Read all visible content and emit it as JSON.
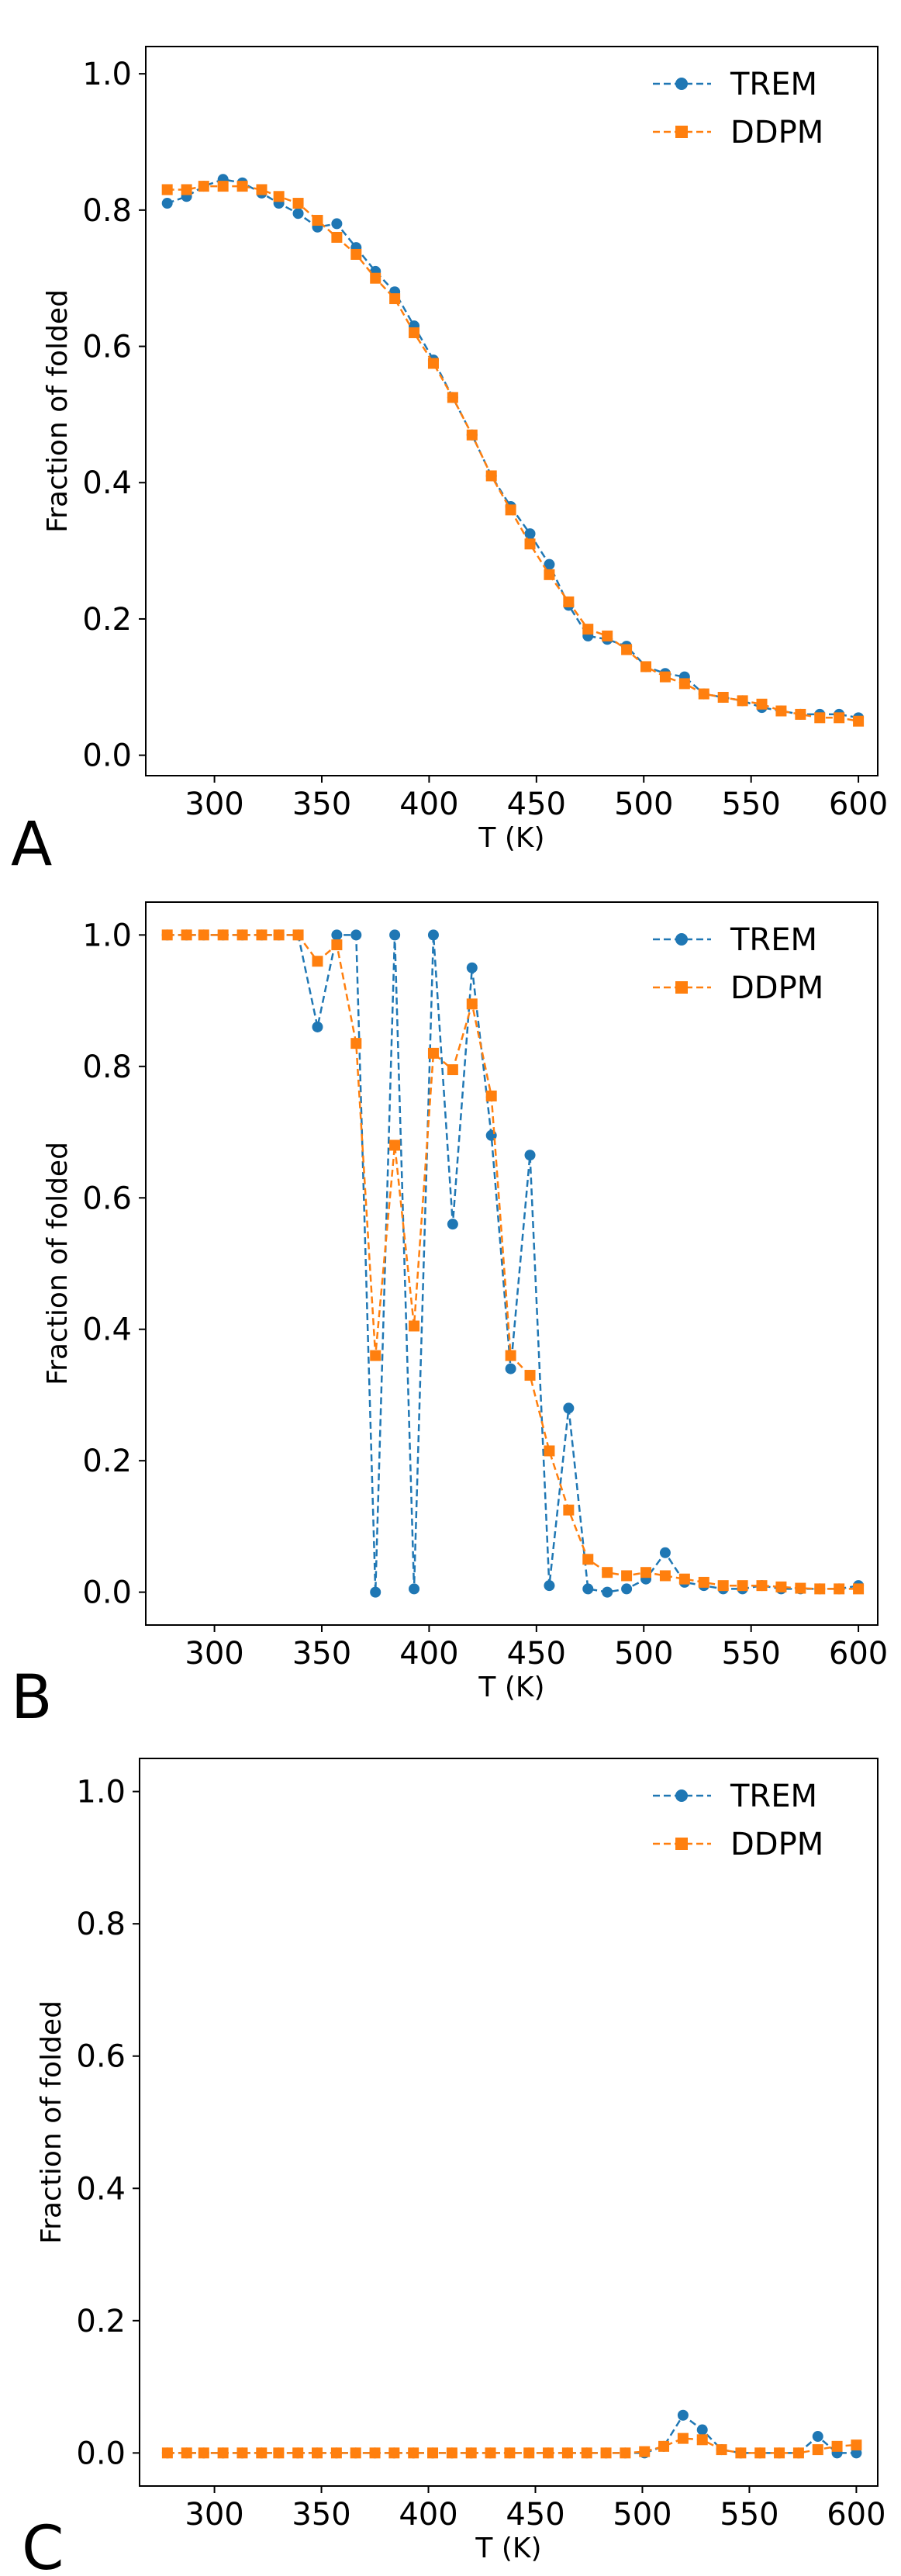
{
  "chart_data": [
    {
      "type": "line",
      "panel_label": "A",
      "xlabel": "T (K)",
      "ylabel": "Fraction of folded",
      "xlim": [
        268,
        609
      ],
      "ylim": [
        -0.03,
        1.04
      ],
      "xticks": [
        300,
        350,
        400,
        450,
        500,
        550,
        600
      ],
      "yticks": [
        0.0,
        0.2,
        0.4,
        0.6,
        0.8,
        1.0
      ],
      "grid": false,
      "legend": "top-right",
      "x": [
        278,
        287,
        295,
        304,
        313,
        322,
        330,
        339,
        348,
        357,
        366,
        375,
        384,
        393,
        402,
        411,
        420,
        429,
        438,
        447,
        456,
        465,
        474,
        483,
        492,
        501,
        510,
        519,
        528,
        537,
        546,
        555,
        564,
        573,
        582,
        591,
        600
      ],
      "series": [
        {
          "name": "TREM",
          "color": "#1f77b4",
          "marker": "circle",
          "values": [
            0.81,
            0.82,
            0.835,
            0.845,
            0.84,
            0.825,
            0.81,
            0.795,
            0.775,
            0.78,
            0.745,
            0.71,
            0.68,
            0.63,
            0.58,
            0.525,
            0.47,
            0.41,
            0.365,
            0.325,
            0.28,
            0.22,
            0.175,
            0.17,
            0.16,
            0.13,
            0.12,
            0.115,
            0.09,
            0.085,
            0.08,
            0.07,
            0.065,
            0.06,
            0.06,
            0.06,
            0.055
          ]
        },
        {
          "name": "DDPM",
          "color": "#ff7f0e",
          "marker": "square",
          "values": [
            0.83,
            0.83,
            0.835,
            0.835,
            0.835,
            0.83,
            0.82,
            0.81,
            0.785,
            0.76,
            0.735,
            0.7,
            0.67,
            0.62,
            0.575,
            0.525,
            0.47,
            0.41,
            0.36,
            0.31,
            0.265,
            0.225,
            0.185,
            0.175,
            0.155,
            0.13,
            0.115,
            0.105,
            0.09,
            0.085,
            0.08,
            0.075,
            0.065,
            0.06,
            0.055,
            0.055,
            0.05
          ]
        }
      ]
    },
    {
      "type": "line",
      "panel_label": "B",
      "xlabel": "T (K)",
      "ylabel": "Fraction of folded",
      "xlim": [
        268,
        609
      ],
      "ylim": [
        -0.05,
        1.05
      ],
      "xticks": [
        300,
        350,
        400,
        450,
        500,
        550,
        600
      ],
      "yticks": [
        0.0,
        0.2,
        0.4,
        0.6,
        0.8,
        1.0
      ],
      "grid": false,
      "legend": "top-right",
      "x": [
        278,
        287,
        295,
        304,
        313,
        322,
        330,
        339,
        348,
        357,
        366,
        375,
        384,
        393,
        402,
        411,
        420,
        429,
        438,
        447,
        456,
        465,
        474,
        483,
        492,
        501,
        510,
        519,
        528,
        537,
        546,
        555,
        564,
        573,
        582,
        591,
        600
      ],
      "series": [
        {
          "name": "TREM",
          "color": "#1f77b4",
          "marker": "circle",
          "values": [
            1.0,
            1.0,
            1.0,
            1.0,
            1.0,
            1.0,
            1.0,
            1.0,
            0.86,
            1.0,
            1.0,
            0.0,
            1.0,
            0.005,
            1.0,
            0.56,
            0.95,
            0.695,
            0.34,
            0.665,
            0.01,
            0.28,
            0.005,
            0.0,
            0.005,
            0.02,
            0.06,
            0.015,
            0.01,
            0.005,
            0.005,
            0.01,
            0.005,
            0.005,
            0.005,
            0.005,
            0.01
          ]
        },
        {
          "name": "DDPM",
          "color": "#ff7f0e",
          "marker": "square",
          "values": [
            1.0,
            1.0,
            1.0,
            1.0,
            1.0,
            1.0,
            1.0,
            1.0,
            0.96,
            0.985,
            0.835,
            0.36,
            0.68,
            0.405,
            0.82,
            0.795,
            0.895,
            0.755,
            0.36,
            0.33,
            0.215,
            0.125,
            0.05,
            0.03,
            0.025,
            0.03,
            0.025,
            0.02,
            0.015,
            0.01,
            0.01,
            0.01,
            0.008,
            0.006,
            0.005,
            0.005,
            0.005
          ]
        }
      ]
    },
    {
      "type": "line",
      "panel_label": "C",
      "xlabel": "T (K)",
      "ylabel": "Fraction of folded",
      "xlim": [
        265,
        610
      ],
      "ylim": [
        -0.05,
        1.05
      ],
      "xticks": [
        300,
        350,
        400,
        450,
        500,
        550,
        600
      ],
      "yticks": [
        0.0,
        0.2,
        0.4,
        0.6,
        0.8,
        1.0
      ],
      "grid": false,
      "legend": "top-right",
      "x": [
        278,
        287,
        295,
        304,
        313,
        322,
        330,
        339,
        348,
        357,
        366,
        375,
        384,
        393,
        402,
        411,
        420,
        429,
        438,
        447,
        456,
        465,
        474,
        483,
        492,
        501,
        510,
        519,
        528,
        537,
        546,
        555,
        564,
        573,
        582,
        591,
        600
      ],
      "series": [
        {
          "name": "TREM",
          "color": "#1f77b4",
          "marker": "circle",
          "values": [
            0.0,
            0.0,
            0.0,
            0.0,
            0.0,
            0.0,
            0.0,
            0.0,
            0.0,
            0.0,
            0.0,
            0.0,
            0.0,
            0.0,
            0.0,
            0.0,
            0.0,
            0.0,
            0.0,
            0.0,
            0.0,
            0.0,
            0.0,
            0.0,
            0.0,
            0.0,
            0.01,
            0.057,
            0.035,
            0.005,
            0.0,
            0.0,
            0.0,
            0.0,
            0.025,
            0.0,
            0.0
          ]
        },
        {
          "name": "DDPM",
          "color": "#ff7f0e",
          "marker": "square",
          "values": [
            0.0,
            0.0,
            0.0,
            0.0,
            0.0,
            0.0,
            0.0,
            0.0,
            0.0,
            0.0,
            0.0,
            0.0,
            0.0,
            0.0,
            0.0,
            0.0,
            0.0,
            0.0,
            0.0,
            0.0,
            0.0,
            0.0,
            0.0,
            0.0,
            0.0,
            0.002,
            0.01,
            0.022,
            0.02,
            0.005,
            0.0,
            0.0,
            0.0,
            0.0,
            0.005,
            0.01,
            0.012
          ]
        }
      ]
    }
  ]
}
